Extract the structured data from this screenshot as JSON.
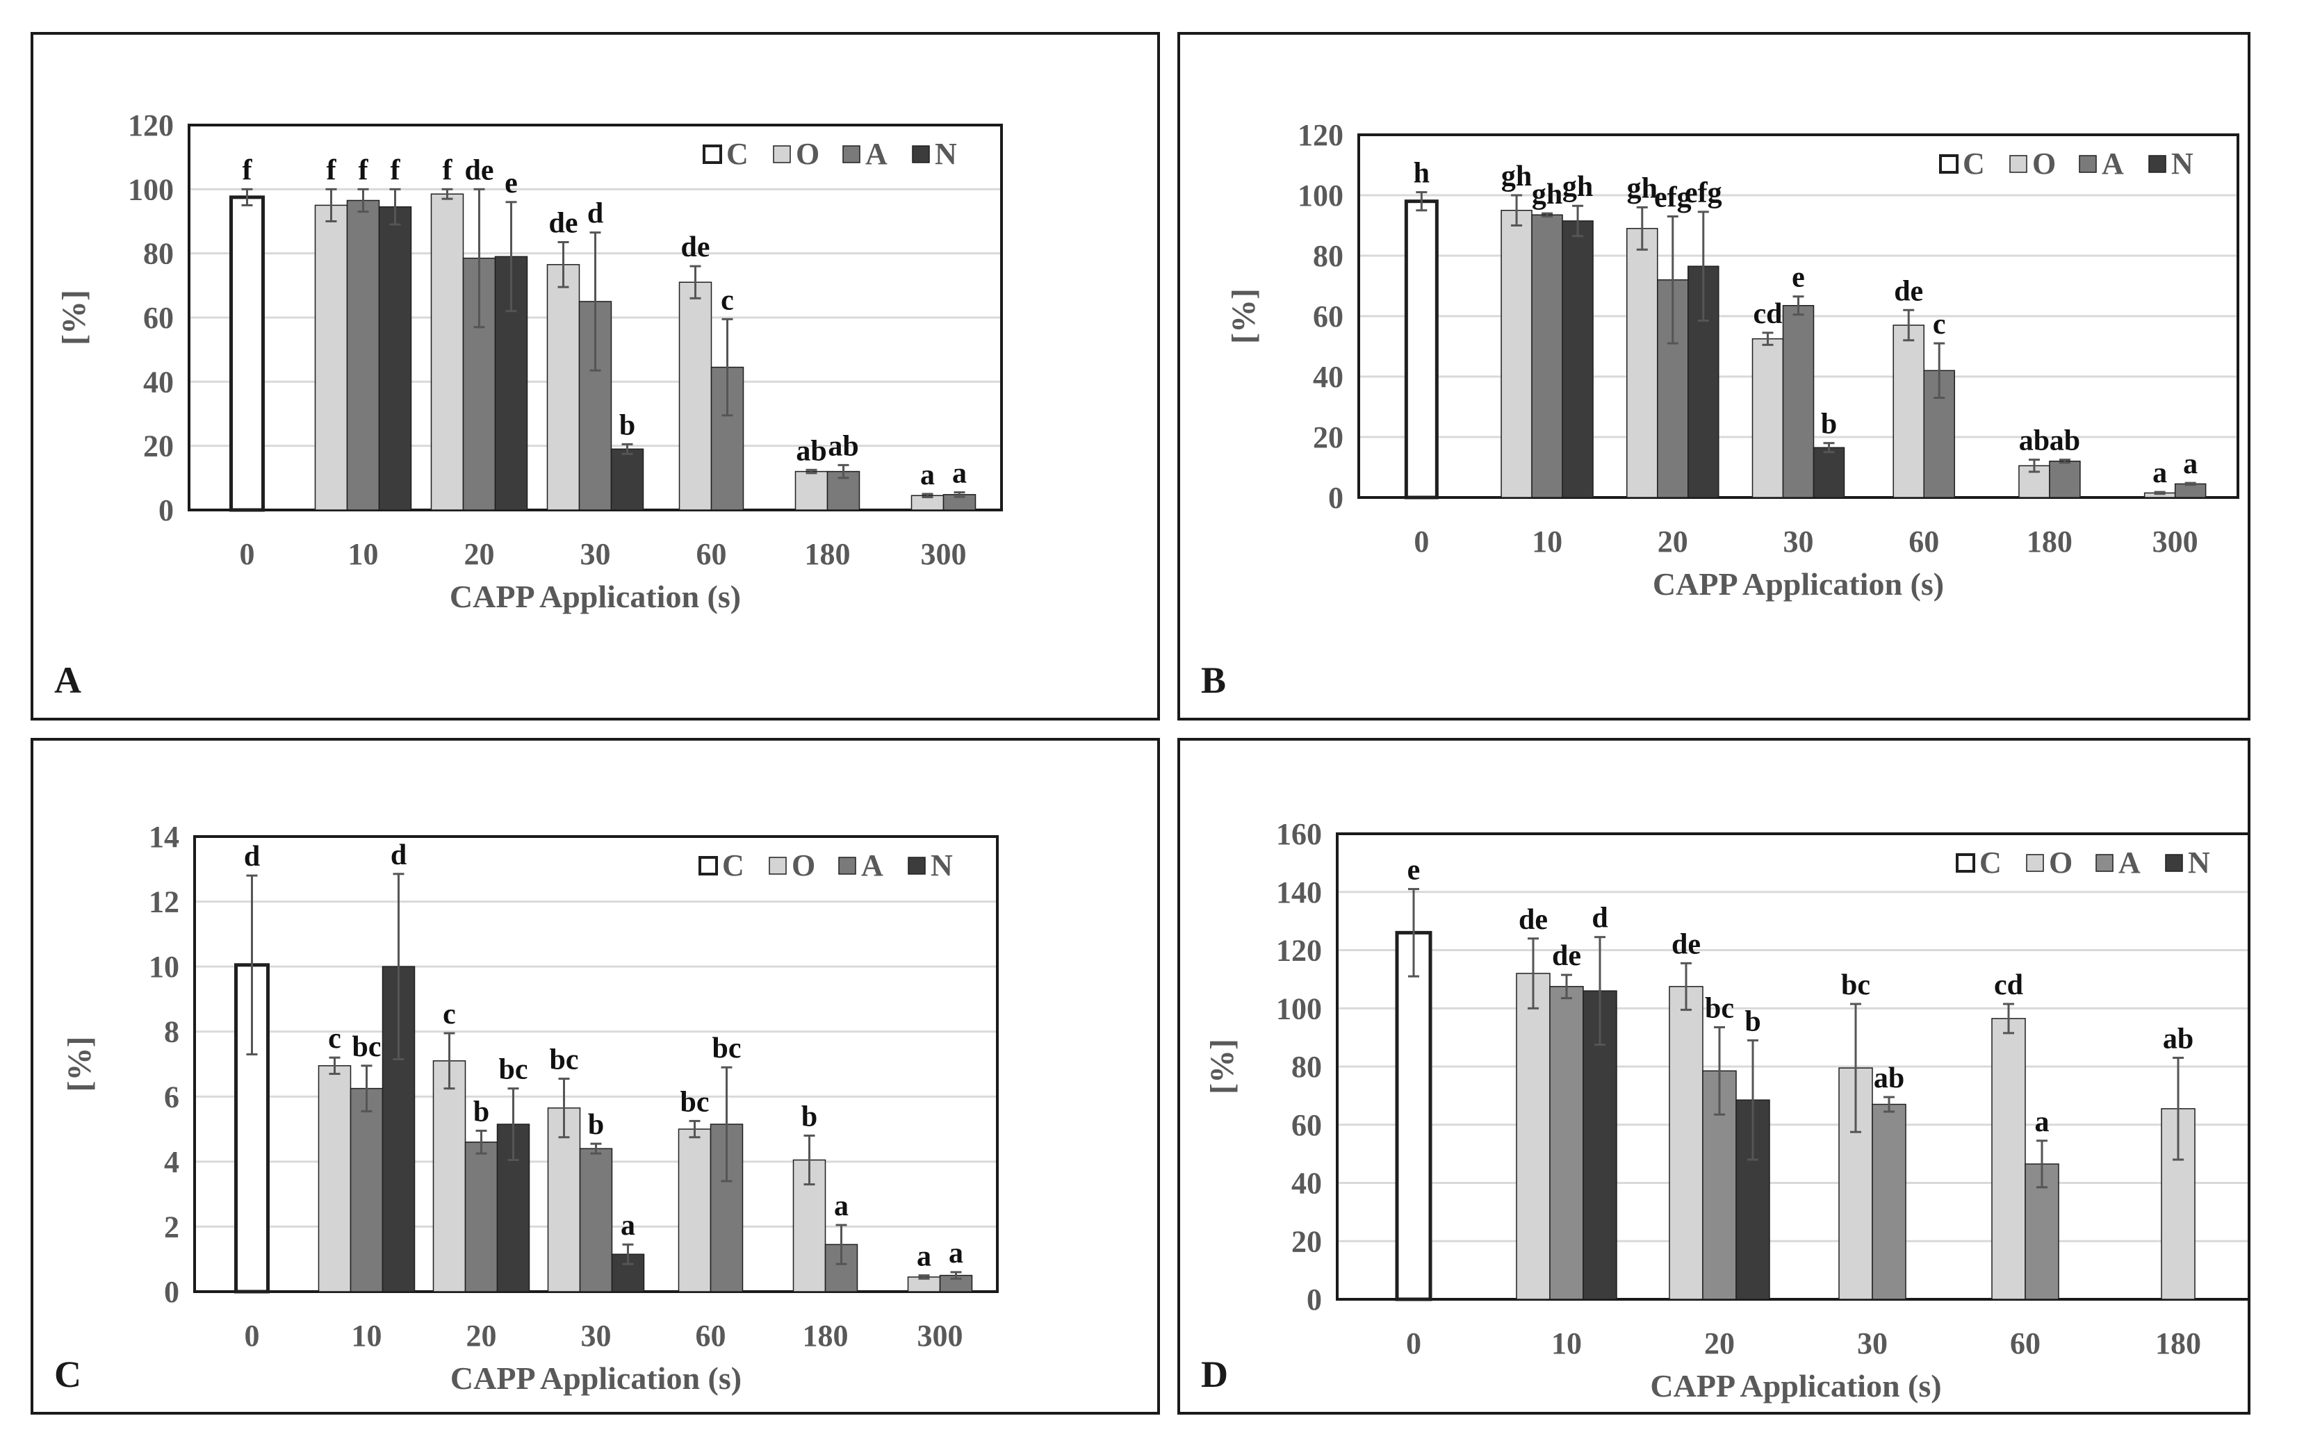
{
  "colors": {
    "C": "#ffffff",
    "O": "#d4d4d4",
    "A": "#7a7a7a",
    "A_panelD": "#8c8c8c",
    "N": "#3c3c3c",
    "grid": "#d9d9d9",
    "axis_text": "#595959",
    "letter": "#111111",
    "errorbar": "#555555",
    "frame": "#1a1a1a"
  },
  "chart_data": [
    {
      "panel": "A",
      "type": "bar",
      "panel_label": "A",
      "xlabel": "CAPP Application (s)",
      "ylabel": "[%]",
      "ylim": [
        0,
        120
      ],
      "yticks": [
        0,
        20,
        40,
        60,
        80,
        100,
        120
      ],
      "categories": [
        "0",
        "10",
        "20",
        "30",
        "60",
        "180",
        "300"
      ],
      "legend": [
        "C",
        "O",
        "A",
        "N"
      ],
      "legend_position": "top-right",
      "grid": true,
      "series": [
        {
          "name": "C",
          "values": [
            97.5,
            null,
            null,
            null,
            null,
            null,
            null
          ],
          "errors": [
            2.5,
            null,
            null,
            null,
            null,
            null,
            null
          ],
          "letters": [
            "f",
            null,
            null,
            null,
            null,
            null,
            null
          ]
        },
        {
          "name": "O",
          "values": [
            null,
            95,
            98.5,
            76.5,
            71,
            12,
            4.5
          ],
          "errors": [
            null,
            5,
            1.5,
            7,
            5,
            0.5,
            0.5
          ],
          "letters": [
            null,
            "f",
            "f",
            "de",
            "de",
            "ab",
            "a"
          ]
        },
        {
          "name": "A",
          "values": [
            null,
            96.5,
            78.5,
            65,
            44.5,
            12,
            4.8
          ],
          "errors": [
            null,
            3.5,
            21.5,
            21.5,
            15,
            2,
            0.7
          ],
          "letters": [
            null,
            "f",
            "de",
            "d",
            "c",
            "ab",
            "a"
          ]
        },
        {
          "name": "N",
          "values": [
            null,
            94.5,
            79,
            19,
            null,
            null,
            null
          ],
          "errors": [
            null,
            5.5,
            17,
            1.5,
            null,
            null,
            null
          ],
          "letters": [
            null,
            "f",
            "e",
            "b",
            null,
            null,
            null
          ]
        }
      ]
    },
    {
      "panel": "B",
      "type": "bar",
      "panel_label": "B",
      "xlabel": "CAPP Application (s)",
      "ylabel": "[%]",
      "ylim": [
        0,
        120
      ],
      "yticks": [
        0,
        20,
        40,
        60,
        80,
        100,
        120
      ],
      "categories": [
        "0",
        "10",
        "20",
        "30",
        "60",
        "180",
        "300"
      ],
      "legend": [
        "C",
        "O",
        "A",
        "N"
      ],
      "legend_position": "top-right",
      "grid": true,
      "series": [
        {
          "name": "C",
          "values": [
            98,
            null,
            null,
            null,
            null,
            null,
            null
          ],
          "errors": [
            3,
            null,
            null,
            null,
            null,
            null,
            null
          ],
          "letters": [
            "h",
            null,
            null,
            null,
            null,
            null,
            null
          ]
        },
        {
          "name": "O",
          "values": [
            null,
            95,
            89,
            52.5,
            57,
            10.5,
            1.5
          ],
          "errors": [
            null,
            5,
            7,
            2,
            5,
            2,
            0.3
          ],
          "letters": [
            null,
            "gh",
            "gh",
            "cd",
            "de",
            "ab",
            "a"
          ]
        },
        {
          "name": "A",
          "values": [
            null,
            93.5,
            72,
            63.5,
            42,
            12,
            4.5
          ],
          "errors": [
            null,
            0.5,
            21,
            3,
            9,
            0.5,
            0.3
          ],
          "letters": [
            null,
            "gh",
            "efg",
            "e",
            "c",
            "ab",
            "a"
          ]
        },
        {
          "name": "N",
          "values": [
            null,
            91.5,
            76.5,
            16.5,
            null,
            null,
            null
          ],
          "errors": [
            null,
            5,
            18,
            1.5,
            null,
            null,
            null
          ],
          "letters": [
            null,
            "gh",
            "efg",
            "b",
            null,
            null,
            null
          ]
        }
      ]
    },
    {
      "panel": "C",
      "type": "bar",
      "panel_label": "C",
      "xlabel": "CAPP Application (s)",
      "ylabel": "[%]",
      "ylim": [
        0,
        14
      ],
      "yticks": [
        0,
        2,
        4,
        6,
        8,
        10,
        12,
        14
      ],
      "categories": [
        "0",
        "10",
        "20",
        "30",
        "60",
        "180",
        "300"
      ],
      "legend": [
        "C",
        "O",
        "A",
        "N"
      ],
      "legend_position": "top-right",
      "grid": true,
      "series": [
        {
          "name": "C",
          "values": [
            10.05,
            null,
            null,
            null,
            null,
            null,
            null
          ],
          "errors": [
            2.75,
            null,
            null,
            null,
            null,
            null,
            null
          ],
          "letters": [
            "d",
            null,
            null,
            null,
            null,
            null,
            null
          ]
        },
        {
          "name": "O",
          "values": [
            null,
            6.95,
            7.1,
            5.65,
            5.0,
            4.05,
            0.45
          ],
          "errors": [
            null,
            0.25,
            0.85,
            0.9,
            0.25,
            0.75,
            0.05
          ],
          "letters": [
            null,
            "c",
            "c",
            "bc",
            "bc",
            "b",
            "a"
          ]
        },
        {
          "name": "A",
          "values": [
            null,
            6.25,
            4.6,
            4.4,
            5.15,
            1.45,
            0.5
          ],
          "errors": [
            null,
            0.7,
            0.35,
            0.15,
            1.75,
            0.6,
            0.1
          ],
          "letters": [
            null,
            "bc",
            "b",
            "b",
            "bc",
            "a",
            "a"
          ]
        },
        {
          "name": "N",
          "values": [
            null,
            10.0,
            5.15,
            1.15,
            null,
            null,
            null
          ],
          "errors": [
            null,
            2.85,
            1.1,
            0.3,
            null,
            null,
            null
          ],
          "letters": [
            null,
            "d",
            "bc",
            "a",
            null,
            null,
            null
          ]
        }
      ]
    },
    {
      "panel": "D",
      "type": "bar",
      "panel_label": "D",
      "xlabel": "CAPP Application (s)",
      "ylabel": "[%]",
      "ylim": [
        0,
        160
      ],
      "yticks": [
        0,
        20,
        40,
        60,
        80,
        100,
        120,
        140,
        160
      ],
      "categories": [
        "0",
        "10",
        "20",
        "30",
        "60",
        "180"
      ],
      "legend": [
        "C",
        "O",
        "A",
        "N"
      ],
      "legend_position": "top-right",
      "grid": true,
      "series": [
        {
          "name": "C",
          "values": [
            126,
            null,
            null,
            null,
            null,
            null
          ],
          "errors": [
            15,
            null,
            null,
            null,
            null,
            null
          ],
          "letters": [
            "e",
            null,
            null,
            null,
            null,
            null
          ]
        },
        {
          "name": "O",
          "values": [
            null,
            112,
            107.5,
            79.5,
            96.5,
            65.5
          ],
          "errors": [
            null,
            12,
            8,
            22,
            5,
            17.5
          ],
          "letters": [
            null,
            "de",
            "de",
            "bc",
            "cd",
            "ab"
          ]
        },
        {
          "name": "A",
          "values": [
            null,
            107.5,
            78.5,
            67,
            46.5,
            null
          ],
          "errors": [
            null,
            4,
            15,
            2.5,
            8,
            null
          ],
          "letters": [
            null,
            "de",
            "bc",
            "ab",
            "a",
            null
          ]
        },
        {
          "name": "N",
          "values": [
            null,
            106,
            68.5,
            null,
            null,
            null
          ],
          "errors": [
            null,
            18.5,
            20.5,
            null,
            null,
            null
          ],
          "letters": [
            null,
            "d",
            "b",
            null,
            null,
            null
          ]
        }
      ]
    }
  ]
}
